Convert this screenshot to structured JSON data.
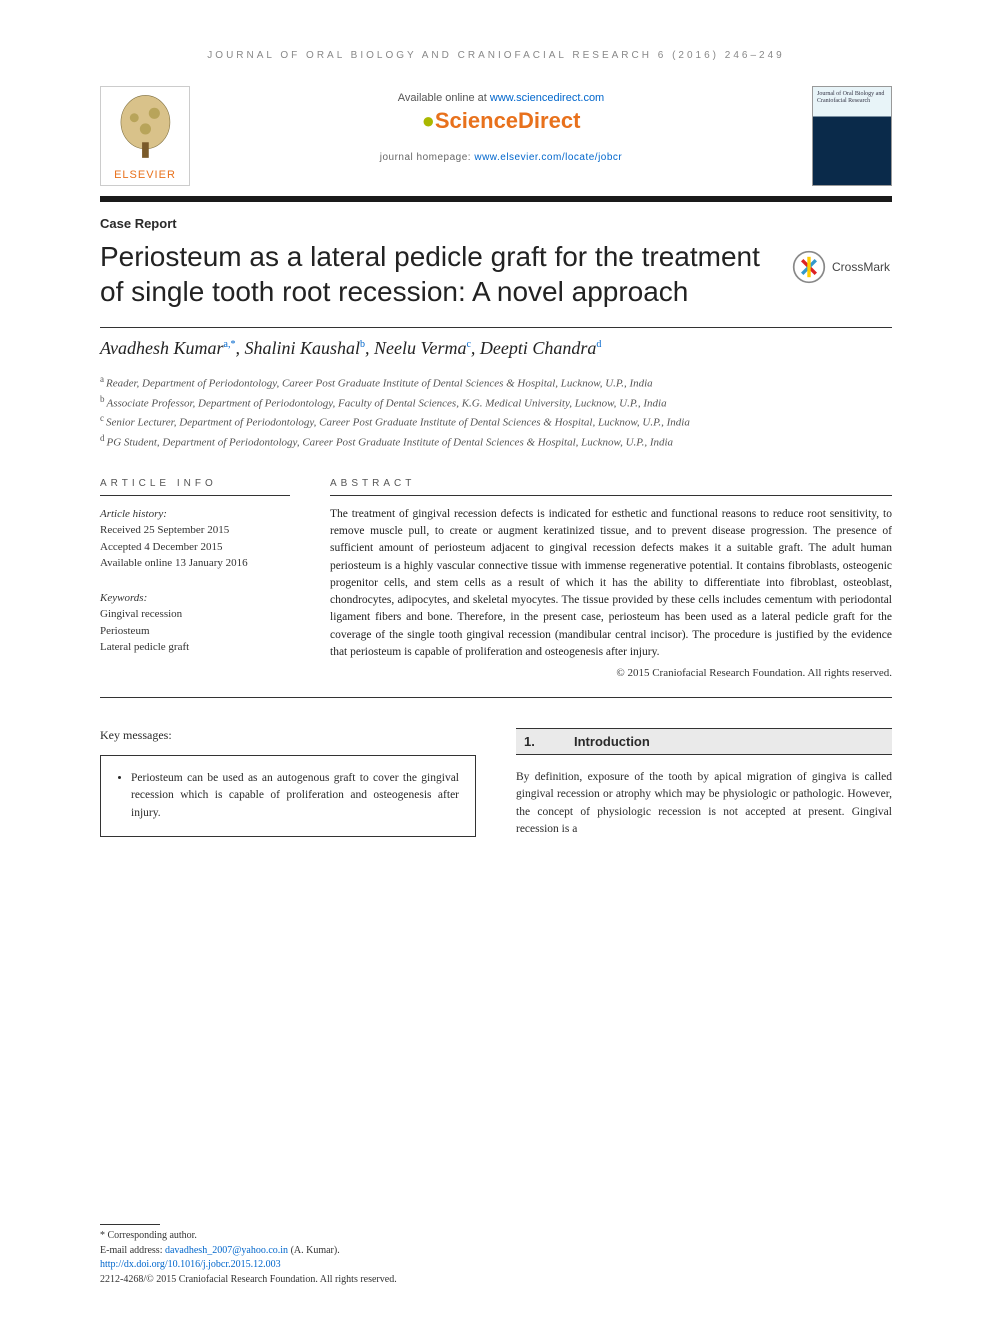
{
  "running_head": "JOURNAL OF ORAL BIOLOGY AND CRANIOFACIAL RESEARCH 6 (2016) 246–249",
  "header": {
    "elsevier_label": "ELSEVIER",
    "available_prefix": "Available online at ",
    "available_link": "www.sciencedirect.com",
    "sd_brand": "ScienceDirect",
    "homepage_prefix": "journal homepage: ",
    "homepage_link": "www.elsevier.com/locate/jobcr",
    "cover_title": "Journal of Oral Biology and Craniofacial Research"
  },
  "article_type": "Case Report",
  "title": "Periosteum as a lateral pedicle graft for the treatment of single tooth root recession: A novel approach",
  "crossmark_label": "CrossMark",
  "authors_html": "Avadhesh Kumar",
  "authors": [
    {
      "name": "Avadhesh Kumar",
      "sup": "a,*"
    },
    {
      "name": "Shalini Kaushal",
      "sup": "b"
    },
    {
      "name": "Neelu Verma",
      "sup": "c"
    },
    {
      "name": "Deepti Chandra",
      "sup": "d"
    }
  ],
  "affiliations": [
    {
      "sup": "a",
      "text": "Reader, Department of Periodontology, Career Post Graduate Institute of Dental Sciences & Hospital, Lucknow, U.P., India"
    },
    {
      "sup": "b",
      "text": "Associate Professor, Department of Periodontology, Faculty of Dental Sciences, K.G. Medical University, Lucknow, U.P., India"
    },
    {
      "sup": "c",
      "text": "Senior Lecturer, Department of Periodontology, Career Post Graduate Institute of Dental Sciences & Hospital, Lucknow, U.P., India"
    },
    {
      "sup": "d",
      "text": "PG Student, Department of Periodontology, Career Post Graduate Institute of Dental Sciences & Hospital, Lucknow, U.P., India"
    }
  ],
  "info": {
    "heading": "ARTICLE INFO",
    "history_label": "Article history:",
    "history": [
      "Received 25 September 2015",
      "Accepted 4 December 2015",
      "Available online 13 January 2016"
    ],
    "keywords_label": "Keywords:",
    "keywords": [
      "Gingival recession",
      "Periosteum",
      "Lateral pedicle graft"
    ]
  },
  "abstract": {
    "heading": "ABSTRACT",
    "text": "The treatment of gingival recession defects is indicated for esthetic and functional reasons to reduce root sensitivity, to remove muscle pull, to create or augment keratinized tissue, and to prevent disease progression. The presence of sufficient amount of periosteum adjacent to gingival recession defects makes it a suitable graft. The adult human periosteum is a highly vascular connective tissue with immense regenerative potential. It contains fibroblasts, osteogenic progenitor cells, and stem cells as a result of which it has the ability to differentiate into fibroblast, osteoblast, chondrocytes, adipocytes, and skeletal myocytes. The tissue provided by these cells includes cementum with periodontal ligament fibers and bone. Therefore, in the present case, periosteum has been used as a lateral pedicle graft for the coverage of the single tooth gingival recession (mandibular central incisor). The procedure is justified by the evidence that periosteum is capable of proliferation and osteogenesis after injury.",
    "copyright": "© 2015 Craniofacial Research Foundation. All rights reserved."
  },
  "key_messages": {
    "label": "Key messages:",
    "items": [
      "Periosteum can be used as an autogenous graft to cover the gingival recession which is capable of proliferation and osteogenesis after injury."
    ]
  },
  "section": {
    "num": "1.",
    "title": "Introduction",
    "body": "By definition, exposure of the tooth by apical migration of gingiva is called gingival recession or atrophy which may be physiologic or pathologic. However, the concept of physiologic recession is not accepted at present. Gingival recession is a"
  },
  "footnotes": {
    "corr_label": "* Corresponding author.",
    "email_label": "E-mail address: ",
    "email": "davadhesh_2007@yahoo.co.in",
    "email_suffix": " (A. Kumar).",
    "doi": "http://dx.doi.org/10.1016/j.jobcr.2015.12.003",
    "issn_line": "2212-4268/© 2015 Craniofacial Research Foundation. All rights reserved."
  },
  "colors": {
    "accent_orange": "#e8711c",
    "link_blue": "#0066cc",
    "rule_dark": "#1a1a1a",
    "text": "#2a2a2a",
    "section_bg": "#eaeaea"
  }
}
